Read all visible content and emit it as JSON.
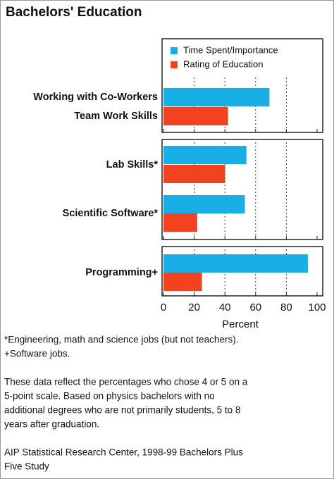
{
  "chart_data": {
    "type": "hbar",
    "title": "Bachelors' Education",
    "categories": [
      [
        "Working with Co-Workers",
        "Team Work Skills"
      ],
      [
        "Lab Skills*"
      ],
      [
        "Scientific Software*"
      ],
      [
        "Programming+"
      ]
    ],
    "series": [
      {
        "name": "Time Spent/Importance",
        "color": "#19aee6",
        "values": [
          69,
          54,
          53,
          94
        ]
      },
      {
        "name": "Rating of Education",
        "color": "#f2421f",
        "values": [
          42,
          40,
          22,
          25
        ]
      }
    ],
    "xlabel": "Percent",
    "xlim": [
      0,
      100
    ],
    "xticks": [
      0,
      20,
      40,
      60,
      80,
      100
    ],
    "grid": true,
    "legend": "top-right",
    "notes": [
      "*Engineering, math and science jobs (but not teachers).",
      "+Software jobs.",
      "These data reflect the percentages who chose 4 or 5 on a",
      "5-point scale.  Based on physics bachelors with no",
      "additional degrees who are not primarily students, 5 to 8",
      "years after graduation.",
      "AIP Statistical Research Center, 1998-99 Bachelors Plus",
      "Five Study"
    ]
  }
}
